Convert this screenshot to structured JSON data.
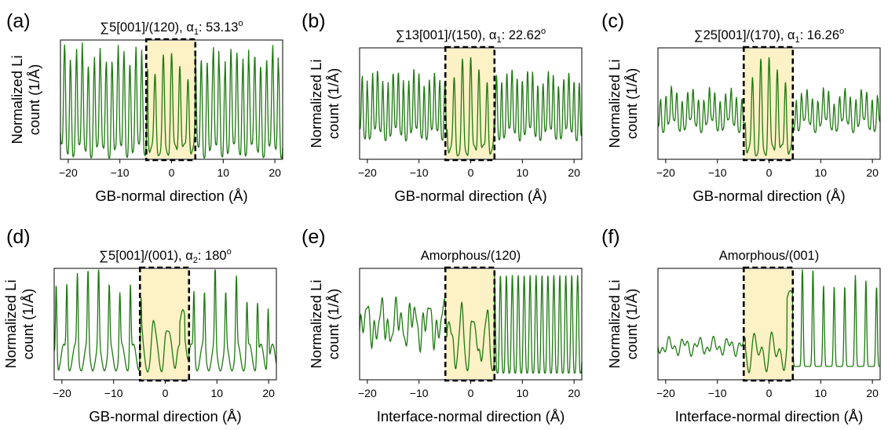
{
  "chart_data": [
    {
      "type": "line",
      "panel_label": "(a)",
      "title": "∑5[001]/(120), α",
      "title_sub": "1",
      "title_tail": ": 53.13",
      "title_sup": "o",
      "xlabel": "GB-normal direction (Å)",
      "ylabel": [
        "Normalized Li",
        "count (1/Å)"
      ],
      "xlim": [
        -21.5,
        21.5
      ],
      "xticks": [
        "−20",
        "−10",
        "0",
        "10",
        "20"
      ],
      "xtick_values": [
        -20,
        -10,
        0,
        10,
        20
      ],
      "highlight_region": [
        -4.9,
        4.6
      ],
      "series": [
        {
          "profile": "crystal-dense",
          "period": 1.15,
          "amplitude": 0.86,
          "baseline": 0.5,
          "center_peaks": 0.92
        }
      ]
    },
    {
      "type": "line",
      "panel_label": "(b)",
      "title": "∑13[001]/(150), α",
      "title_sub": "1",
      "title_tail": ": 22.62",
      "title_sup": "o",
      "xlabel": "GB-normal direction (Å)",
      "ylabel": [
        "Normalized Li",
        "count (1/Å)"
      ],
      "xlim": [
        -21.5,
        21.5
      ],
      "xticks": [
        "−20",
        "−10",
        "0",
        "10",
        "20"
      ],
      "xtick_values": [
        -20,
        -10,
        0,
        10,
        20
      ],
      "highlight_region": [
        -4.9,
        4.6
      ],
      "series": [
        {
          "profile": "crystal-dense",
          "period": 1.0,
          "amplitude": 0.55,
          "baseline": 0.5,
          "center_peaks": 0.95
        }
      ]
    },
    {
      "type": "line",
      "panel_label": "(c)",
      "title": "∑25[001]/(170), α",
      "title_sub": "1",
      "title_tail": ": 16.26",
      "title_sup": "o",
      "xlabel": "GB-normal direction  (Å)",
      "ylabel": [
        "Normalized Li",
        "count (1/Å)"
      ],
      "xlim": [
        -21.5,
        21.5
      ],
      "xticks": [
        "−20",
        "−10",
        "0",
        "10",
        "20"
      ],
      "xtick_values": [
        -20,
        -10,
        0,
        10,
        20
      ],
      "highlight_region": [
        -4.9,
        4.6
      ],
      "series": [
        {
          "profile": "crystal-dense",
          "period": 1.05,
          "amplitude": 0.3,
          "baseline": 0.45,
          "center_peaks": 0.95
        }
      ]
    },
    {
      "type": "line",
      "panel_label": "(d)",
      "title": "∑5[001]/(001), α",
      "title_sub": "2",
      "title_tail": ": 180",
      "title_sup": "o",
      "xlabel": "GB-normal direction (Å)",
      "ylabel": [
        "Normalized Li",
        "count (1/Å)"
      ],
      "xlim": [
        -21.5,
        21.5
      ],
      "xticks": [
        "−20",
        "−10",
        "0",
        "10",
        "20"
      ],
      "xtick_values": [
        -20,
        -10,
        0,
        10,
        20
      ],
      "highlight_region": [
        -4.9,
        4.6
      ],
      "series": [
        {
          "profile": "crystal-sparse",
          "period": 2.05,
          "amplitude": 0.9,
          "baseline": 0.2,
          "center_peaks": 0.45
        }
      ]
    },
    {
      "type": "line",
      "panel_label": "(e)",
      "title": "Amorphous/(120)",
      "title_sub": "",
      "title_tail": "",
      "title_sup": "",
      "xlabel": "Interface-normal direction (Å)",
      "ylabel": [
        "Normalized Li",
        "count (1/Å)"
      ],
      "xlim": [
        -21.5,
        21.5
      ],
      "xticks": [
        "−20",
        "−10",
        "0",
        "10",
        "20"
      ],
      "xtick_values": [
        -20,
        -10,
        0,
        10,
        20
      ],
      "highlight_region": [
        -4.9,
        4.6
      ],
      "series": [
        {
          "profile": "amorphous-then-dense",
          "period": 1.15,
          "amplitude": 0.88,
          "baseline": 0.5,
          "center_peaks": 0.6
        }
      ]
    },
    {
      "type": "line",
      "panel_label": "(f)",
      "title": "Amorphous/(001)",
      "title_sub": "",
      "title_tail": "",
      "title_sup": "",
      "xlabel": "Interface-normal direction (Å)",
      "ylabel": [
        "Normalized Li",
        "count (1/Å)"
      ],
      "xlim": [
        -21.5,
        21.5
      ],
      "xticks": [
        "−20",
        "−10",
        "0",
        "10",
        "20"
      ],
      "xtick_values": [
        -20,
        -10,
        0,
        10,
        20
      ],
      "highlight_region": [
        -4.9,
        4.6
      ],
      "series": [
        {
          "profile": "amorphous-then-sparse",
          "period": 2.05,
          "amplitude": 0.9,
          "baseline": 0.2,
          "center_peaks": 0.5
        }
      ]
    }
  ],
  "colors": {
    "line": "#1e7a10",
    "highlight": "#fdf1c6",
    "frame": "#000000",
    "dash_box": "#000000"
  }
}
